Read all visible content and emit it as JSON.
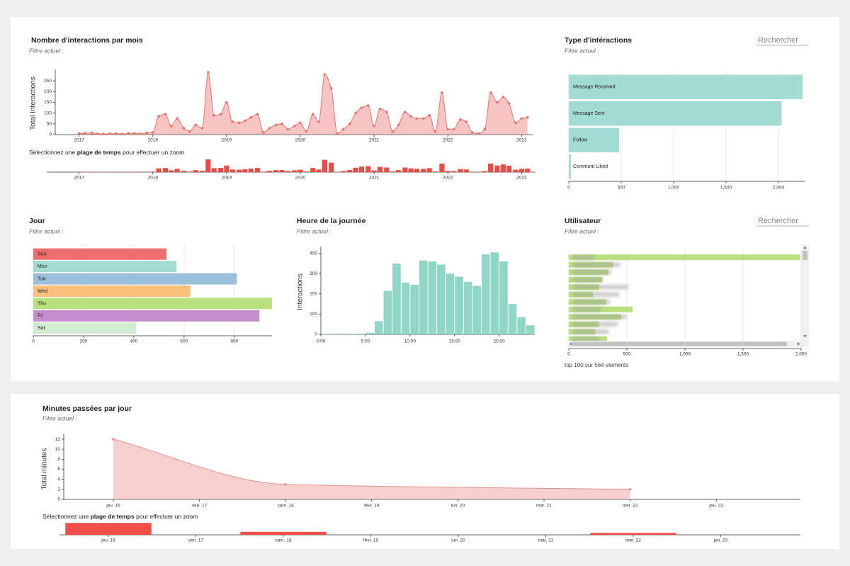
{
  "chart_data": [
    {
      "type": "area",
      "title": "Nombre d'interactions par mois",
      "filter_label": "Filtre actuel :",
      "ylabel": "Total Interactions",
      "color": "#e8736f",
      "x": [
        2017.0,
        2017.08,
        2017.17,
        2017.25,
        2017.33,
        2017.42,
        2017.5,
        2017.58,
        2017.67,
        2017.75,
        2017.83,
        2017.92,
        2018.0,
        2018.08,
        2018.17,
        2018.25,
        2018.33,
        2018.42,
        2018.5,
        2018.58,
        2018.67,
        2018.75,
        2018.83,
        2018.92,
        2019.0,
        2019.08,
        2019.17,
        2019.25,
        2019.33,
        2019.42,
        2019.5,
        2019.58,
        2019.67,
        2019.75,
        2019.83,
        2019.92,
        2020.0,
        2020.08,
        2020.17,
        2020.25,
        2020.33,
        2020.42,
        2020.5,
        2020.58,
        2020.67,
        2020.75,
        2020.83,
        2020.92,
        2021.0,
        2021.08,
        2021.17,
        2021.25,
        2021.33,
        2021.42,
        2021.5,
        2021.58,
        2021.67,
        2021.75,
        2021.83,
        2021.92,
        2022.0,
        2022.08,
        2022.17,
        2022.25,
        2022.33,
        2022.42,
        2022.5,
        2022.58,
        2022.67,
        2022.75,
        2022.83,
        2022.92,
        2023.0,
        2023.08
      ],
      "values": [
        5,
        6,
        8,
        4,
        3,
        4,
        5,
        3,
        5,
        6,
        4,
        8,
        10,
        85,
        95,
        40,
        75,
        30,
        15,
        45,
        30,
        290,
        90,
        95,
        150,
        60,
        55,
        65,
        80,
        95,
        10,
        30,
        45,
        50,
        25,
        40,
        55,
        15,
        95,
        60,
        280,
        215,
        5,
        25,
        50,
        100,
        125,
        135,
        40,
        120,
        105,
        15,
        45,
        105,
        85,
        75,
        75,
        90,
        15,
        195,
        25,
        25,
        70,
        60,
        10,
        5,
        25,
        195,
        150,
        175,
        145,
        55,
        75,
        80
      ],
      "xlim": [
        2016.6,
        2023.15
      ],
      "xticks": [
        2017,
        2018,
        2019,
        2020,
        2021,
        2022,
        2023
      ],
      "ylim": [
        0,
        290
      ],
      "yticks": [
        0,
        50,
        100,
        150,
        200,
        250
      ],
      "brush_hint": [
        "Sélectionnez une",
        "plage de temps",
        "pour effectuer un zoom"
      ],
      "brush_color": "#e74c45"
    },
    {
      "type": "bar",
      "orientation": "horizontal",
      "title": "Type d'intéractions",
      "filter_label": "Filtre actuel :",
      "search_placeholder": "Rechercher",
      "categories": [
        "Message Received",
        "Message Sent",
        "Follow",
        "Comment Liked"
      ],
      "values": [
        2230,
        2030,
        480,
        20
      ],
      "color": "#a3dcd2",
      "xlim": [
        0,
        2250
      ],
      "xticks": [
        0,
        500,
        {
          "value": 1000,
          "label": "1,000"
        },
        {
          "value": 1500,
          "label": "1,500"
        },
        {
          "value": 2000,
          "label": "2,000"
        }
      ],
      "grid": true
    },
    {
      "type": "bar",
      "orientation": "horizontal",
      "title": "Jour",
      "filter_label": "Filtre actuel :",
      "categories": [
        "Sun",
        "Mon",
        "Tue",
        "Wed",
        "Thu",
        "Fri",
        "Sat"
      ],
      "values": [
        530,
        570,
        810,
        625,
        950,
        900,
        410
      ],
      "colors": [
        "#ee6e6e",
        "#a3dcd2",
        "#9ac0dc",
        "#fbc07e",
        "#b8e07e",
        "#c58fcf",
        "#d3ecd1"
      ],
      "xlim": [
        0,
        950
      ],
      "xticks": [
        0,
        200,
        400,
        600,
        800
      ],
      "grid": true
    },
    {
      "type": "histogram",
      "title": "Heure de la journée",
      "filter_label": "Filtre actuel :",
      "ylabel": "Interactions",
      "color": "#8fd6c6",
      "bins": [
        0,
        1,
        2,
        3,
        4,
        5,
        6,
        7,
        8,
        9,
        10,
        11,
        12,
        13,
        14,
        15,
        16,
        17,
        18,
        19,
        20,
        21,
        22,
        23,
        24
      ],
      "values": [
        2,
        2,
        2,
        2,
        3,
        8,
        65,
        215,
        350,
        255,
        245,
        365,
        360,
        345,
        300,
        285,
        260,
        240,
        395,
        405,
        360,
        150,
        85,
        45
      ],
      "xlim": [
        0,
        24
      ],
      "xticks": [
        {
          "value": 0,
          "label": "0:00"
        },
        {
          "value": 5,
          "label": "5:00"
        },
        {
          "value": 10,
          "label": "10:00"
        },
        {
          "value": 15,
          "label": "15:00"
        },
        {
          "value": 20,
          "label": "20:00"
        }
      ],
      "ylim": [
        0,
        420
      ],
      "yticks": [
        0,
        100,
        200,
        300,
        400
      ]
    },
    {
      "type": "bar",
      "orientation": "horizontal",
      "title": "Utilisateur",
      "filter_label": "Filtre actuel :",
      "search_placeholder": "Rechercher",
      "footer": "top 100 sur 564 elements",
      "categories": [
        null,
        null,
        null,
        null,
        null,
        null,
        null,
        null,
        null,
        null,
        null,
        null
      ],
      "values": [
        1990,
        380,
        340,
        290,
        260,
        210,
        320,
        550,
        450,
        260,
        230,
        330
      ],
      "color": "#b8e07e",
      "xlim": [
        0,
        2000
      ],
      "xticks": [
        0,
        500,
        {
          "value": 1000,
          "label": "1,000"
        },
        {
          "value": 1500,
          "label": "1,500"
        },
        {
          "value": 2000,
          "label": "2,000"
        }
      ],
      "grid": true
    },
    {
      "type": "area",
      "title": "Minutes passées par jour",
      "filter_label": "Filtre actuel :",
      "ylabel": "Total minutes",
      "color": "#e8908b",
      "categories": [
        "jeu. 16",
        "ven. 17",
        "sam. 18",
        "févr. 19",
        "lun. 20",
        "mar. 21",
        "mer. 22",
        "jeu. 23"
      ],
      "x": [
        "jeu. 16",
        "sam. 18",
        "mer. 22"
      ],
      "values": [
        12,
        3,
        2
      ],
      "ylim": [
        0,
        12.5
      ],
      "yticks": [
        0,
        2,
        4,
        6,
        8,
        10,
        12
      ],
      "brush_hint": [
        "Sélectionnez une",
        "plage de temps",
        "pour effectuer un zoom"
      ],
      "brush_color": "#f04f4a"
    }
  ]
}
